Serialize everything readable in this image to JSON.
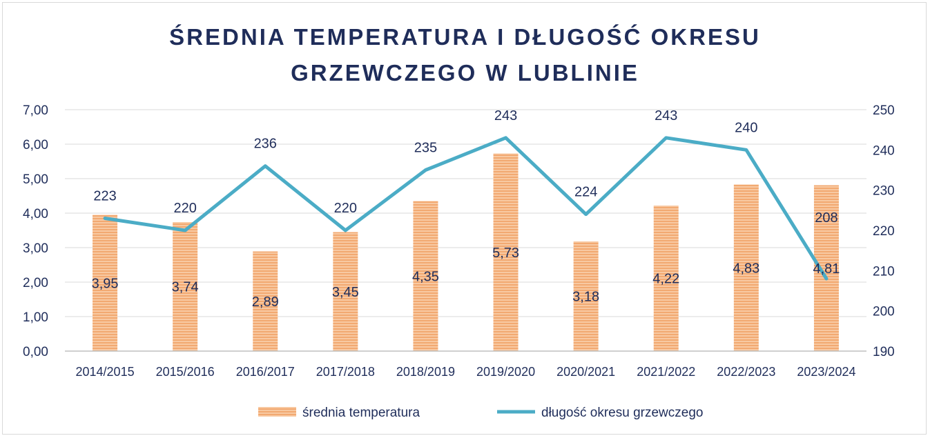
{
  "chart_data": {
    "type": "bar+line",
    "title": "ŚREDNIA TEMPERATURA I DŁUGOŚĆ OKRESU GRZEWCZEGO W LUBLINIE",
    "title_lines": [
      "ŚREDNIA TEMPERATURA I DŁUGOŚĆ OKRESU",
      "GRZEWCZEGO W LUBLINIE"
    ],
    "categories": [
      "2014/2015",
      "2015/2016",
      "2016/2017",
      "2017/2018",
      "2018/2019",
      "2019/2020",
      "2020/2021",
      "2021/2022",
      "2022/2023",
      "2023/2024"
    ],
    "series": [
      {
        "name": "średnia temperatura",
        "type": "bar",
        "axis": "left",
        "values": [
          3.95,
          3.74,
          2.89,
          3.45,
          4.35,
          5.73,
          3.18,
          4.22,
          4.83,
          4.81
        ],
        "labels": [
          "3,95",
          "3,74",
          "2,89",
          "3,45",
          "4,35",
          "5,73",
          "3,18",
          "4,22",
          "4,83",
          "4,81"
        ],
        "color": "#f4b183"
      },
      {
        "name": "długość okresu grzewczego",
        "type": "line",
        "axis": "right",
        "values": [
          223,
          220,
          236,
          220,
          235,
          243,
          224,
          243,
          240,
          208
        ],
        "labels": [
          "223",
          "220",
          "236",
          "220",
          "235",
          "243",
          "224",
          "243",
          "240",
          "208"
        ],
        "color": "#4bacc6"
      }
    ],
    "y_left": {
      "min": 0,
      "max": 7,
      "step": 1,
      "tick_labels": [
        "0,00",
        "1,00",
        "2,00",
        "3,00",
        "4,00",
        "5,00",
        "6,00",
        "7,00"
      ]
    },
    "y_right": {
      "min": 190,
      "max": 250,
      "step": 10,
      "tick_labels": [
        "190",
        "200",
        "210",
        "220",
        "230",
        "240",
        "250"
      ]
    },
    "grid": true,
    "legend_position": "bottom",
    "title_color": "#1f2d5a",
    "text_color": "#1f2d5a",
    "grid_color": "#d9d9d9"
  }
}
